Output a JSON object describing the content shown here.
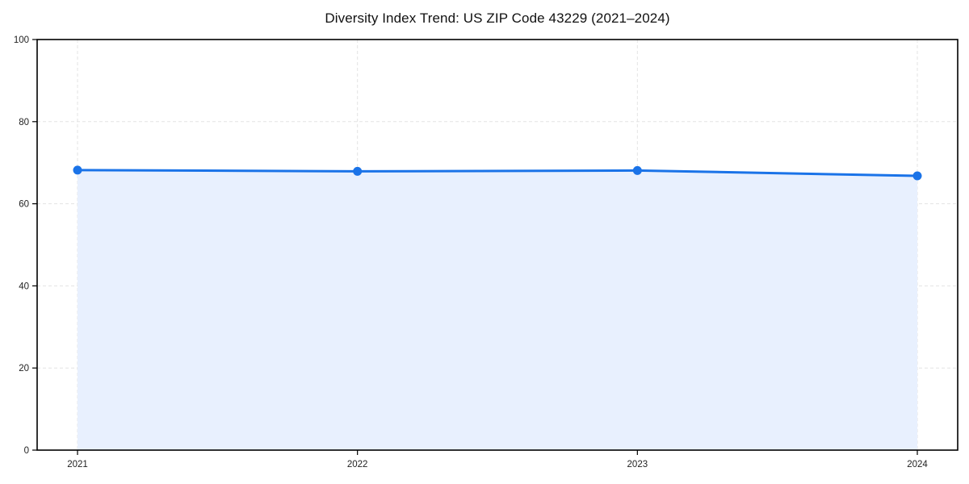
{
  "page": {
    "background": "#ffffff"
  },
  "chart_data": {
    "type": "area",
    "title": "Diversity Index Trend: US ZIP Code 43229 (2021–2024)",
    "categories": [
      "2021",
      "2022",
      "2023",
      "2024"
    ],
    "series": [
      {
        "name": "Diversity Index",
        "values": [
          68.2,
          67.9,
          68.1,
          66.8
        ]
      }
    ],
    "xlabel": "",
    "ylabel": "",
    "ylim": [
      0,
      100
    ],
    "yticks": [
      0,
      20,
      40,
      60,
      80,
      100
    ],
    "grid": "dashed, both axes",
    "legend": "none",
    "marker": "filled-circle",
    "colors": {
      "line": "#1a73e8",
      "marker": "#1a73e8",
      "fill": "#e8f0fe",
      "grid": "#e3e3e3",
      "axis": "#000000",
      "tick_label": "#1f1f1f",
      "title": "#111111"
    }
  }
}
